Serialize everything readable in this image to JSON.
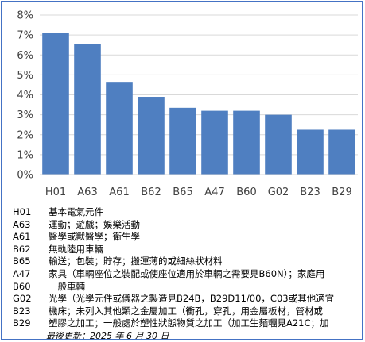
{
  "chart_data": {
    "type": "bar",
    "categories": [
      "H01",
      "A63",
      "A61",
      "B62",
      "B65",
      "A47",
      "B60",
      "G02",
      "B23",
      "B29"
    ],
    "values": [
      7.1,
      6.55,
      4.65,
      3.9,
      3.35,
      3.2,
      3.2,
      3.0,
      2.25,
      2.25
    ],
    "unit": "%",
    "ylim": [
      0,
      8
    ],
    "yticks": [
      "0%",
      "1%",
      "2%",
      "3%",
      "4%",
      "5%",
      "6%",
      "7%",
      "8%"
    ],
    "grid": true,
    "bar_color": "#4f7fc1"
  },
  "legend": [
    {
      "code": "H01",
      "desc": "基本電氣元件"
    },
    {
      "code": "A63",
      "desc": "運動；遊戲；娛樂活動"
    },
    {
      "code": "A61",
      "desc": "醫學或獸醫學；衛生學"
    },
    {
      "code": "B62",
      "desc": "無軌陸用車輛"
    },
    {
      "code": "B65",
      "desc": "輸送；包裝；貯存；搬運薄的或細絲狀材料"
    },
    {
      "code": "A47",
      "desc": "家具（車輛座位之裝配或使座位適用於車輛之需要見B60N）；家庭用"
    },
    {
      "code": "B60",
      "desc": "一般車輛"
    },
    {
      "code": "G02",
      "desc": "光學（光學元件或儀器之製造見B24B，B29D11/00，C03或其他適宜"
    },
    {
      "code": "B23",
      "desc": "機床；未列入其他類之金屬加工（衝孔，穿孔，用金屬板材，管材或"
    },
    {
      "code": "B29",
      "desc": "塑膠之加工；一般處於塑性狀態物質之加工（加工生麵糰見A21C；加"
    }
  ],
  "footer": {
    "updated": "最後更新：2025 年 6 月 30 日"
  }
}
